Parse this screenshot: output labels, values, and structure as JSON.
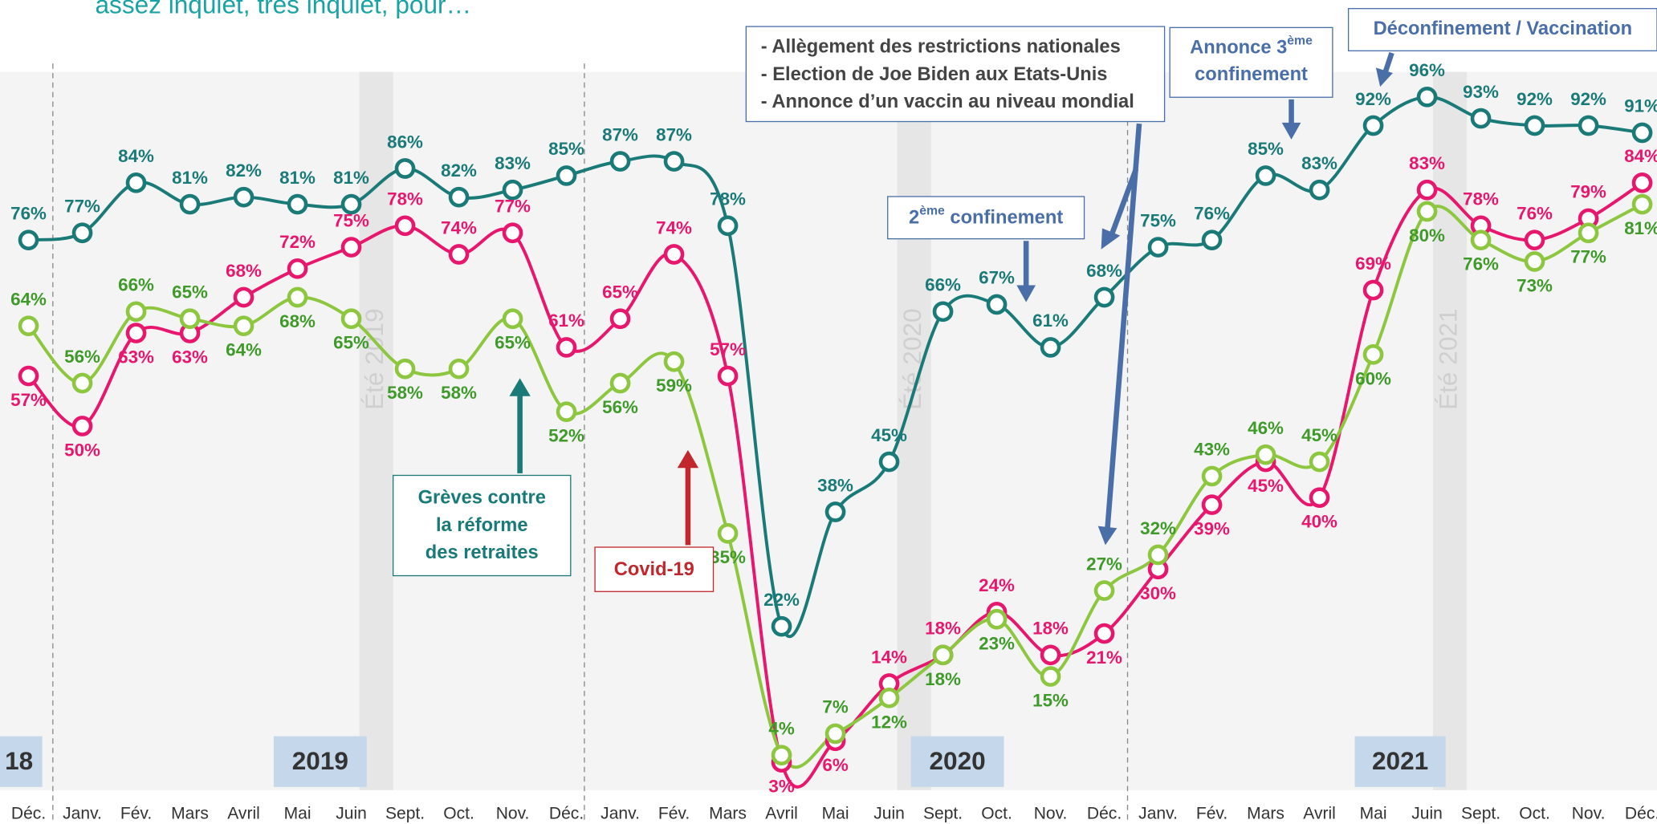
{
  "chart_data": {
    "type": "line",
    "title": "assez inquiet, très inquiet, pour…",
    "categories": [
      "Déc.",
      "Janv.",
      "Fév.",
      "Mars",
      "Avril",
      "Mai",
      "Juin",
      "Sept.",
      "Oct.",
      "Nov.",
      "Déc.",
      "Janv.",
      "Fév.",
      "Mars",
      "Avril",
      "Mai",
      "Juin",
      "Sept.",
      "Oct.",
      "Nov.",
      "Déc.",
      "Janv.",
      "Fév.",
      "Mars",
      "Avril",
      "Mai",
      "Juin",
      "Sept.",
      "Oct.",
      "Nov.",
      "Déc."
    ],
    "series": [
      {
        "color": "#1a7a78",
        "label_color": "#1a7a78",
        "values": [
          76,
          77,
          84,
          81,
          82,
          81,
          81,
          86,
          82,
          83,
          85,
          87,
          87,
          78,
          22,
          38,
          45,
          66,
          67,
          61,
          68,
          75,
          76,
          85,
          83,
          92,
          96,
          93,
          92,
          92,
          91
        ],
        "value_labels": [
          "76%",
          "77%",
          "84%",
          "81%",
          "82%",
          "81%",
          "81%",
          "86%",
          "82%",
          "83%",
          "85%",
          "87%",
          "87%",
          "78%",
          "22%",
          "38%",
          "45%",
          "66%",
          "67%",
          "61%",
          "68%",
          "75%",
          "76%",
          "85%",
          "83%",
          "92%",
          "96%",
          "93%",
          "92%",
          "92%",
          "91%"
        ]
      },
      {
        "color": "#e8176e",
        "label_color": "#e8176e",
        "values": [
          57,
          50,
          63,
          63,
          68,
          72,
          75,
          78,
          74,
          77,
          61,
          65,
          74,
          57,
          3,
          6,
          14,
          18,
          24,
          18,
          21,
          30,
          39,
          45,
          40,
          69,
          83,
          78,
          76,
          79,
          84
        ],
        "value_labels": [
          "57%",
          "50%",
          "63%",
          "63%",
          "68%",
          "72%",
          "75%",
          "78%",
          "74%",
          "77%",
          "61%",
          "65%",
          "74%",
          "57%",
          "3%",
          "6%",
          "14%",
          "18%",
          "24%",
          "18%",
          "21%",
          "30%",
          "39%",
          "45%",
          "40%",
          "69%",
          "83%",
          "78%",
          "76%",
          "79%",
          "84%"
        ]
      },
      {
        "color": "#8dc63f",
        "label_color": "#3f9a2a",
        "values": [
          64,
          56,
          66,
          65,
          64,
          68,
          65,
          58,
          58,
          65,
          52,
          56,
          59,
          35,
          4,
          7,
          12,
          18,
          23,
          15,
          27,
          32,
          43,
          46,
          45,
          60,
          80,
          76,
          73,
          77,
          81
        ],
        "value_labels": [
          "64%",
          "56%",
          "66%",
          "65%",
          "64%",
          "68%",
          "65%",
          "58%",
          "58%",
          "65%",
          "52%",
          "56%",
          "59%",
          "35%",
          "4%",
          "7%",
          "12%",
          "18%",
          "23%",
          "15%",
          "27%",
          "32%",
          "43%",
          "46%",
          "45%",
          "60%",
          "80%",
          "76%",
          "73%",
          "77%",
          "81%"
        ]
      }
    ],
    "years": [
      "18",
      "2019",
      "2020",
      "2021"
    ],
    "summers": [
      "Été 2019",
      "Été 2020",
      "Été 2021"
    ],
    "annotations": {
      "strikes": [
        "Grèves contre",
        "la réforme",
        "des retraites"
      ],
      "covid": "Covid-19",
      "second_lockdown": [
        "2",
        "ème",
        " confinement"
      ],
      "third_lockdown": [
        "Annonce 3",
        "ème",
        "confinement"
      ],
      "reopening": "Déconfinement / Vaccination",
      "events": [
        "- Allègement des restrictions nationales",
        "- Election de Joe Biden aux Etats-Unis",
        "- Annonce d’un vaccin au niveau mondial"
      ]
    }
  }
}
